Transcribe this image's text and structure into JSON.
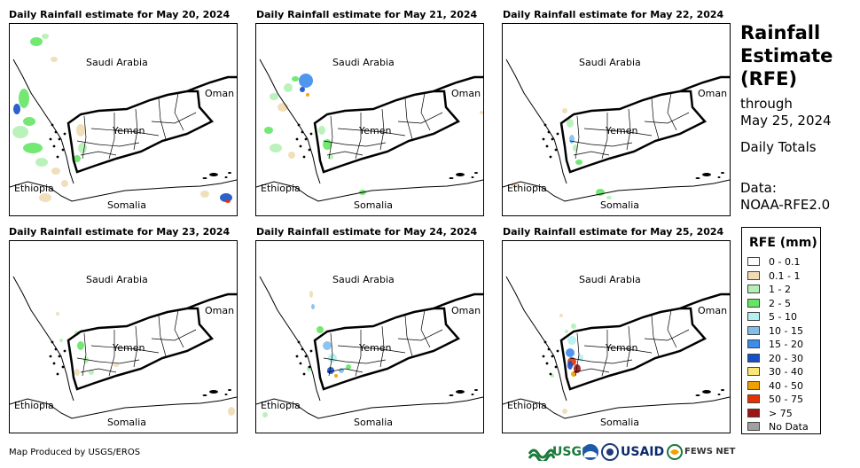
{
  "panels": [
    {
      "title": "Daily Rainfall estimate for May 20, 2024"
    },
    {
      "title": "Daily Rainfall estimate for May 21, 2024"
    },
    {
      "title": "Daily Rainfall estimate for May 22, 2024"
    },
    {
      "title": "Daily Rainfall estimate for May 23, 2024"
    },
    {
      "title": "Daily Rainfall estimate for May 24, 2024"
    },
    {
      "title": "Daily Rainfall estimate for May 25, 2024"
    }
  ],
  "map_labels": {
    "saudi": "Saudi Arabia",
    "oman": "Oman",
    "yemen": "Yemen",
    "ethiopia": "Ethiopia",
    "somalia": "Somalia"
  },
  "side": {
    "title_lines": [
      "Rainfall",
      "Estimate",
      "(RFE)"
    ],
    "through": "through",
    "date": "May 25, 2024",
    "totals": "Daily Totals",
    "data_label": "Data:",
    "data_source": "NOAA-RFE2.0"
  },
  "legend": {
    "title": "RFE (mm)",
    "items": [
      {
        "label": "0 - 0.1",
        "color": "#ffffff"
      },
      {
        "label": "0.1 - 1",
        "color": "#f0dcb4"
      },
      {
        "label": "1 - 2",
        "color": "#b4f0b4"
      },
      {
        "label": "2 - 5",
        "color": "#64e664"
      },
      {
        "label": "5 - 10",
        "color": "#b4f0f0"
      },
      {
        "label": "10 - 15",
        "color": "#82beeb"
      },
      {
        "label": "15 - 20",
        "color": "#3c8ceb"
      },
      {
        "label": "20 - 30",
        "color": "#1450c8"
      },
      {
        "label": "30 - 40",
        "color": "#fae678"
      },
      {
        "label": "40 - 50",
        "color": "#f0a000"
      },
      {
        "label": "50 - 75",
        "color": "#e63200"
      },
      {
        "label": "> 75",
        "color": "#a01414"
      },
      {
        "label": "No Data",
        "color": "#a0a0a0"
      }
    ]
  },
  "footer": {
    "credit": "Map Produced by USGS/EROS",
    "logos": {
      "usgs": "USGS",
      "usaid": "USAID",
      "fewsnet": "FEWS NET"
    }
  }
}
